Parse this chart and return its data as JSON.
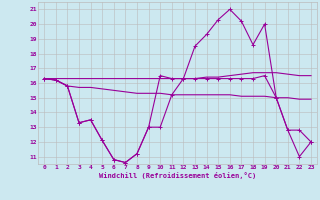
{
  "xlabel": "Windchill (Refroidissement éolien,°C)",
  "hours": [
    0,
    1,
    2,
    3,
    4,
    5,
    6,
    7,
    8,
    9,
    10,
    11,
    12,
    13,
    14,
    15,
    16,
    17,
    18,
    19,
    20,
    21,
    22,
    23
  ],
  "windchill": [
    16.3,
    16.2,
    15.8,
    13.3,
    13.5,
    12.1,
    10.8,
    10.6,
    11.2,
    13.0,
    16.5,
    16.3,
    16.3,
    18.5,
    19.3,
    20.3,
    21.0,
    20.2,
    18.6,
    20.0,
    15.0,
    12.8,
    11.0,
    12.0
  ],
  "temp": [
    16.3,
    16.2,
    15.8,
    13.3,
    13.5,
    12.1,
    10.8,
    10.6,
    11.2,
    13.0,
    13.0,
    15.2,
    16.3,
    16.3,
    16.3,
    16.3,
    16.3,
    16.3,
    16.3,
    16.5,
    15.0,
    12.8,
    12.8,
    12.0
  ],
  "reg_high": [
    16.3,
    16.3,
    16.3,
    16.3,
    16.3,
    16.3,
    16.3,
    16.3,
    16.3,
    16.3,
    16.3,
    16.3,
    16.3,
    16.3,
    16.4,
    16.4,
    16.5,
    16.6,
    16.7,
    16.7,
    16.7,
    16.6,
    16.5,
    16.5
  ],
  "reg_low": [
    16.3,
    16.2,
    15.8,
    15.7,
    15.7,
    15.6,
    15.5,
    15.4,
    15.3,
    15.3,
    15.3,
    15.2,
    15.2,
    15.2,
    15.2,
    15.2,
    15.2,
    15.1,
    15.1,
    15.1,
    15.0,
    15.0,
    14.9,
    14.9
  ],
  "color": "#990099",
  "bg_color": "#cce8f0",
  "grid_color": "#bbbbbb",
  "ylim": [
    10.5,
    21.5
  ],
  "yticks": [
    11,
    12,
    13,
    14,
    15,
    16,
    17,
    18,
    19,
    20,
    21
  ]
}
